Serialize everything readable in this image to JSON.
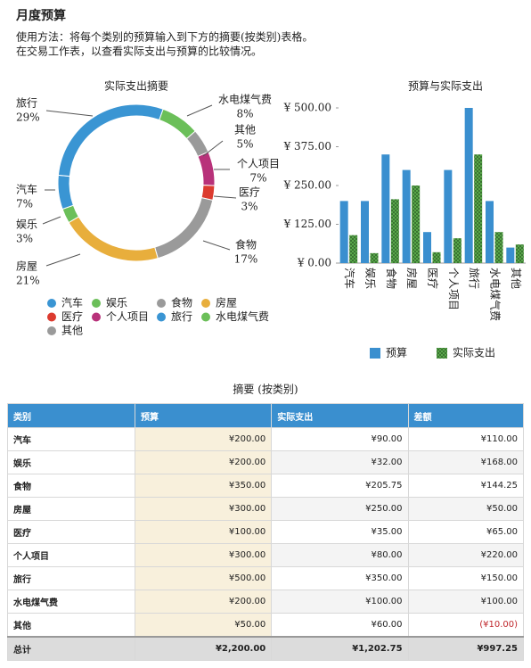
{
  "header": {
    "title": "月度预算",
    "instructions": [
      "使用方法：将每个类别的预算输入到下方的摘要(按类别)表格。",
      "在交易工作表，以查看实际支出与预算的比较情况。"
    ]
  },
  "chart_data": [
    {
      "type": "pie",
      "title": "实际支出摘要",
      "donut": true,
      "categories": [
        "汽车",
        "娱乐",
        "食物",
        "房屋",
        "医疗",
        "个人项目",
        "旅行",
        "水电煤气费",
        "其他"
      ],
      "values": [
        7,
        3,
        17,
        21,
        3,
        7,
        29,
        8,
        5
      ],
      "value_labels": [
        "7%",
        "3%",
        "17%",
        "21%",
        "3%",
        "7%",
        "29%",
        "8%",
        "5%"
      ],
      "colors": [
        "#3a95d3",
        "#6bbf59",
        "#9a9a9a",
        "#e8ae3c",
        "#dc3b2f",
        "#b8327a",
        "#3a95d3",
        "#6bbf59",
        "#9a9a9a"
      ]
    },
    {
      "type": "bar",
      "title": "预算与实际支出",
      "categories": [
        "汽车",
        "娱乐",
        "食物",
        "房屋",
        "医疗",
        "个人项目",
        "旅行",
        "水电煤气费",
        "其他"
      ],
      "series": [
        {
          "name": "预算",
          "color": "#3a8fcf",
          "values": [
            200,
            200,
            350,
            300,
            100,
            300,
            500,
            200,
            50
          ]
        },
        {
          "name": "实际支出",
          "color": "#5fb24f",
          "hatch": true,
          "values": [
            90,
            32,
            205.75,
            250,
            35,
            80,
            350,
            100,
            60
          ]
        }
      ],
      "ylim": [
        0,
        500
      ],
      "yticks": [
        {
          "value": 0,
          "label": "¥ 0.00"
        },
        {
          "value": 125,
          "label": "¥ 125.00"
        },
        {
          "value": 250,
          "label": "¥ 250.00"
        },
        {
          "value": 375,
          "label": "¥ 375.00"
        },
        {
          "value": 500,
          "label": "¥ 500.00"
        }
      ],
      "grid": false,
      "legend": "bottom"
    }
  ],
  "table": {
    "title": "摘要 (按类别)",
    "headers": [
      "类别",
      "预算",
      "实际支出",
      "差额"
    ],
    "rows": [
      [
        "汽车",
        "¥200.00",
        "¥90.00",
        "¥110.00"
      ],
      [
        "娱乐",
        "¥200.00",
        "¥32.00",
        "¥168.00"
      ],
      [
        "食物",
        "¥350.00",
        "¥205.75",
        "¥144.25"
      ],
      [
        "房屋",
        "¥300.00",
        "¥250.00",
        "¥50.00"
      ],
      [
        "医疗",
        "¥100.00",
        "¥35.00",
        "¥65.00"
      ],
      [
        "个人项目",
        "¥300.00",
        "¥80.00",
        "¥220.00"
      ],
      [
        "旅行",
        "¥500.00",
        "¥350.00",
        "¥150.00"
      ],
      [
        "水电煤气费",
        "¥200.00",
        "¥100.00",
        "¥100.00"
      ],
      [
        "其他",
        "¥50.00",
        "¥60.00",
        "(¥10.00)"
      ]
    ],
    "total": [
      "总计",
      "¥2,200.00",
      "¥1,202.75",
      "¥997.25"
    ]
  }
}
